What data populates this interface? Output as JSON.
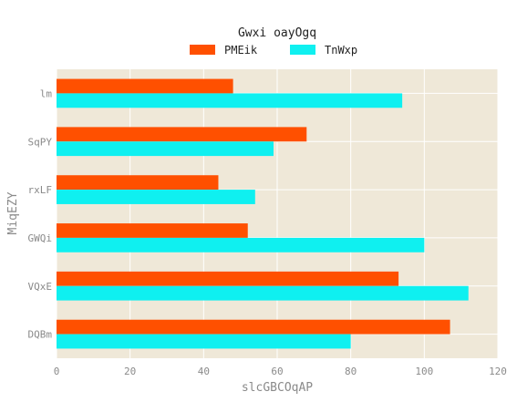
{
  "chart_data": {
    "type": "bar",
    "orientation": "horizontal",
    "title": "Gwxi oayOgq",
    "xlabel": "slcGBCOqAP",
    "ylabel": "MiqEZY",
    "categories": [
      "lm",
      "SqPY",
      "rxLF",
      "GWQi",
      "VQxE",
      "DQBm"
    ],
    "series": [
      {
        "name": "PMEik",
        "color": "#ff5000",
        "values": [
          48,
          68,
          44,
          52,
          93,
          107
        ]
      },
      {
        "name": "TnWxp",
        "color": "#0ff0f0",
        "values": [
          94,
          59,
          54,
          100,
          112,
          80
        ]
      }
    ],
    "xlim": [
      0,
      120
    ],
    "xticks": [
      "0",
      "20",
      "40",
      "60",
      "80",
      "100",
      "120"
    ],
    "grid": true,
    "legend": "top-center",
    "background": "#efe8d8"
  }
}
